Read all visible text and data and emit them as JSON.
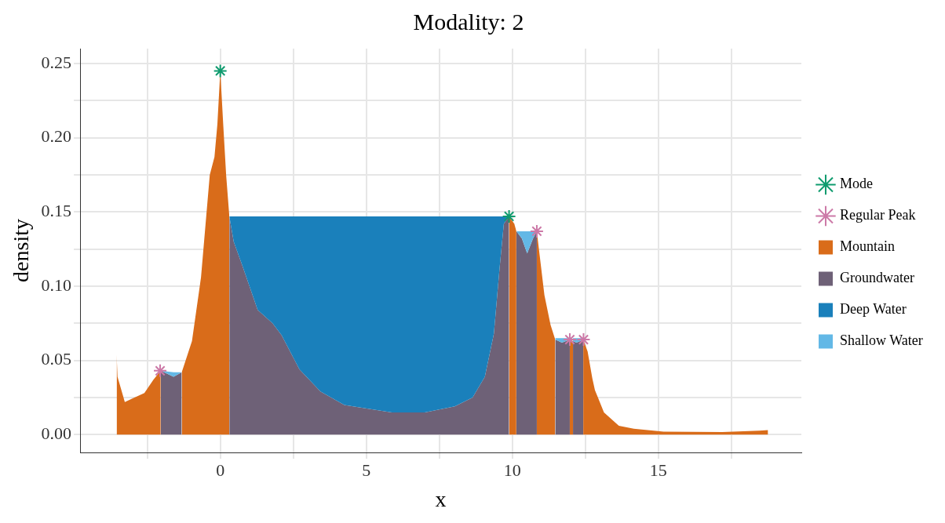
{
  "chart_data": {
    "type": "area",
    "title": "Modality: 2",
    "xlabel": "x",
    "ylabel": "density",
    "stacked": true,
    "xlim": [
      -4.8,
      19.9
    ],
    "ylim": [
      -0.012,
      0.26
    ],
    "xticks": [
      {
        "value": -2.5,
        "label": null
      },
      0,
      {
        "value": 2.5,
        "label": null
      },
      5,
      {
        "value": 7.5,
        "label": null
      },
      10,
      {
        "value": 12.5,
        "label": null
      },
      15,
      {
        "value": 17.5,
        "label": null
      }
    ],
    "yticks": [
      {
        "value": 0,
        "label": "0.00"
      },
      {
        "value": 0.025,
        "label": null
      },
      {
        "value": 0.05,
        "label": "0.05"
      },
      {
        "value": 0.075,
        "label": null
      },
      {
        "value": 0.1,
        "label": "0.10"
      },
      {
        "value": 0.125,
        "label": null
      },
      {
        "value": 0.15,
        "label": "0.15"
      },
      {
        "value": 0.175,
        "label": null
      },
      {
        "value": 0.2,
        "label": "0.20"
      },
      {
        "value": 0.225,
        "label": null
      },
      {
        "value": 0.25,
        "label": "0.25"
      }
    ],
    "grid": true,
    "legend": "right",
    "x": [
      -3.55,
      -3.52,
      -3.27,
      -2.6,
      -2.29,
      -2.04,
      -2.04,
      -1.6,
      -1.32,
      -1.32,
      -0.97,
      -0.66,
      -0.36,
      -0.2,
      -0.1,
      0,
      0.1,
      0.2,
      0.31,
      0.31,
      0.46,
      0.77,
      1.28,
      1.79,
      2.1,
      2.71,
      3.43,
      4.25,
      5.88,
      7,
      8.03,
      8.64,
      9.06,
      9.37,
      9.56,
      9.71,
      9.89,
      9.89,
      10.07,
      10.14,
      10.14,
      10.33,
      10.51,
      10.71,
      10.84,
      10.84,
      11.1,
      11.31,
      11.47,
      11.47,
      11.7,
      11.97,
      11.97,
      12.08,
      12.08,
      12.2,
      12.43,
      12.43,
      12.58,
      12.74,
      12.83,
      13.14,
      13.65,
      14.16,
      15.18,
      17.2,
      18.46,
      18.76
    ],
    "series": [
      {
        "name": "Mode",
        "type": "scatter",
        "marker": "cross",
        "color": "#0f9b6e",
        "x": [
          0,
          9.89
        ],
        "values": [
          0.245,
          0.147
        ]
      },
      {
        "name": "Regular Peak",
        "type": "scatter",
        "marker": "cross",
        "color": "#cc79a7",
        "x": [
          -2.06,
          10.84,
          11.97,
          12.44
        ],
        "values": [
          0.043,
          0.137,
          0.064,
          0.064
        ]
      },
      {
        "name": "Mountain",
        "color": "#d96c1a",
        "values": [
          0.054,
          0.039,
          0.022,
          0.028,
          0.037,
          0.043,
          null,
          null,
          null,
          0.042,
          0.063,
          0.106,
          0.175,
          0.187,
          0.209,
          0.245,
          0.209,
          0.175,
          0.147,
          null,
          null,
          null,
          null,
          null,
          null,
          null,
          null,
          null,
          null,
          null,
          null,
          null,
          null,
          null,
          null,
          null,
          null,
          0.147,
          0.142,
          0.137,
          null,
          null,
          null,
          null,
          null,
          0.137,
          0.094,
          0.074,
          0.064,
          null,
          null,
          null,
          0.064,
          0.063,
          null,
          null,
          null,
          0.064,
          0.056,
          0.038,
          0.03,
          0.015,
          0.006,
          0.004,
          0.002,
          0.0017,
          0.0027,
          0.003
        ]
      },
      {
        "name": "Groundwater",
        "color": "#6e6177",
        "values": [
          null,
          null,
          null,
          null,
          null,
          null,
          0.043,
          0.039,
          0.042,
          null,
          null,
          null,
          null,
          null,
          null,
          null,
          null,
          null,
          null,
          0.147,
          0.13,
          0.113,
          0.084,
          0.075,
          0.067,
          0.044,
          0.029,
          0.02,
          0.015,
          0.015,
          0.019,
          0.025,
          0.039,
          0.068,
          0.111,
          0.142,
          0.147,
          null,
          null,
          null,
          0.137,
          0.132,
          0.122,
          0.132,
          0.137,
          null,
          null,
          null,
          null,
          0.064,
          0.062,
          0.064,
          null,
          null,
          0.063,
          0.062,
          0.064,
          null,
          null,
          null,
          null,
          null,
          null,
          null,
          null,
          null,
          null,
          null
        ]
      },
      {
        "name": "Deep Water",
        "color": "#1a80bb",
        "values": [
          null,
          null,
          null,
          null,
          null,
          null,
          null,
          null,
          null,
          null,
          null,
          null,
          null,
          null,
          null,
          null,
          null,
          null,
          null,
          0,
          0.017,
          0.034,
          0.063,
          0.072,
          0.08,
          0.103,
          0.118,
          0.127,
          0.132,
          0.132,
          0.128,
          0.122,
          0.108,
          0.079,
          0.036,
          0.005,
          0,
          null,
          null,
          null,
          null,
          null,
          null,
          null,
          null,
          null,
          null,
          null,
          null,
          null,
          null,
          null,
          null,
          null,
          null,
          null,
          null,
          null,
          null,
          null,
          null,
          null,
          null,
          null,
          null,
          null,
          null,
          null
        ]
      },
      {
        "name": "Shallow Water",
        "color": "#63b8e6",
        "values": [
          null,
          null,
          null,
          null,
          null,
          null,
          0,
          0.003,
          0,
          null,
          null,
          null,
          null,
          null,
          null,
          null,
          null,
          null,
          null,
          null,
          null,
          null,
          null,
          null,
          null,
          null,
          null,
          null,
          null,
          null,
          null,
          null,
          null,
          null,
          null,
          null,
          null,
          null,
          null,
          null,
          0,
          0.005,
          0.015,
          0.005,
          0,
          null,
          null,
          null,
          null,
          0.001,
          0.003,
          0.001,
          null,
          null,
          0.002,
          0.003,
          0.001,
          null,
          null,
          null,
          null,
          null,
          null,
          null,
          null,
          null,
          null,
          null
        ]
      }
    ]
  }
}
